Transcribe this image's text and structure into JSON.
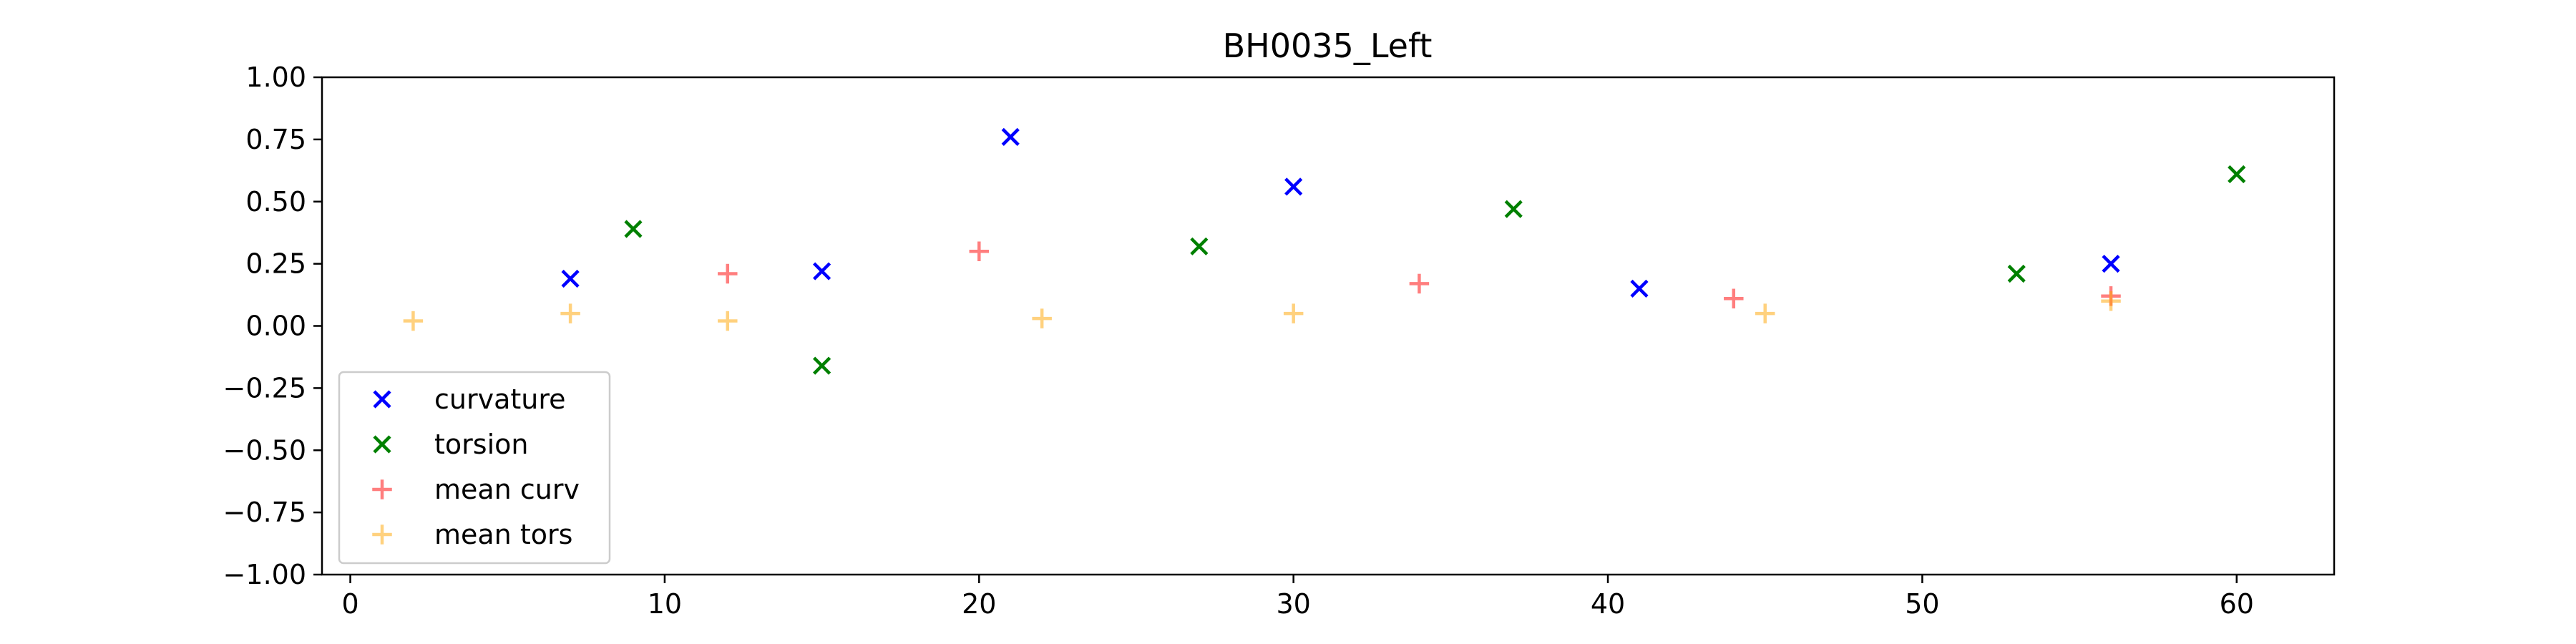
{
  "chart_data": {
    "type": "scatter",
    "title": "BH0035_Left",
    "xlabel": "",
    "ylabel": "",
    "xlim": [
      -0.9,
      63.1
    ],
    "ylim": [
      -1.0,
      1.0
    ],
    "xticks": [
      0,
      10,
      20,
      30,
      40,
      50,
      60
    ],
    "yticks": [
      -1.0,
      -0.75,
      -0.5,
      -0.25,
      0.0,
      0.25,
      0.5,
      0.75,
      1.0
    ],
    "xtick_labels": [
      "0",
      "10",
      "20",
      "30",
      "40",
      "50",
      "60"
    ],
    "ytick_labels": [
      "−1.00",
      "−0.75",
      "−0.50",
      "−0.25",
      "0.00",
      "0.25",
      "0.50",
      "0.75",
      "1.00"
    ],
    "grid": false,
    "legend_position": "lower-left",
    "series": [
      {
        "name": "curvature",
        "marker": "x",
        "color": "#0000ff",
        "alpha": 1.0,
        "points": [
          [
            7,
            0.19
          ],
          [
            15,
            0.22
          ],
          [
            21,
            0.76
          ],
          [
            30,
            0.56
          ],
          [
            41,
            0.15
          ],
          [
            56,
            0.25
          ]
        ]
      },
      {
        "name": "torsion",
        "marker": "x",
        "color": "#008000",
        "alpha": 1.0,
        "points": [
          [
            9,
            0.39
          ],
          [
            15,
            -0.16
          ],
          [
            27,
            0.32
          ],
          [
            37,
            0.47
          ],
          [
            53,
            0.21
          ],
          [
            60,
            0.61
          ]
        ]
      },
      {
        "name": "mean curv",
        "marker": "+",
        "color": "#ff0000",
        "alpha": 0.5,
        "points": [
          [
            12,
            0.21
          ],
          [
            20,
            0.3
          ],
          [
            34,
            0.17
          ],
          [
            44,
            0.11
          ],
          [
            56,
            0.12
          ]
        ]
      },
      {
        "name": "mean tors",
        "marker": "+",
        "color": "#ffa500",
        "alpha": 0.5,
        "points": [
          [
            2,
            0.02
          ],
          [
            7,
            0.05
          ],
          [
            12,
            0.02
          ],
          [
            22,
            0.03
          ],
          [
            30,
            0.05
          ],
          [
            45,
            0.05
          ],
          [
            56,
            0.1
          ]
        ]
      }
    ]
  }
}
